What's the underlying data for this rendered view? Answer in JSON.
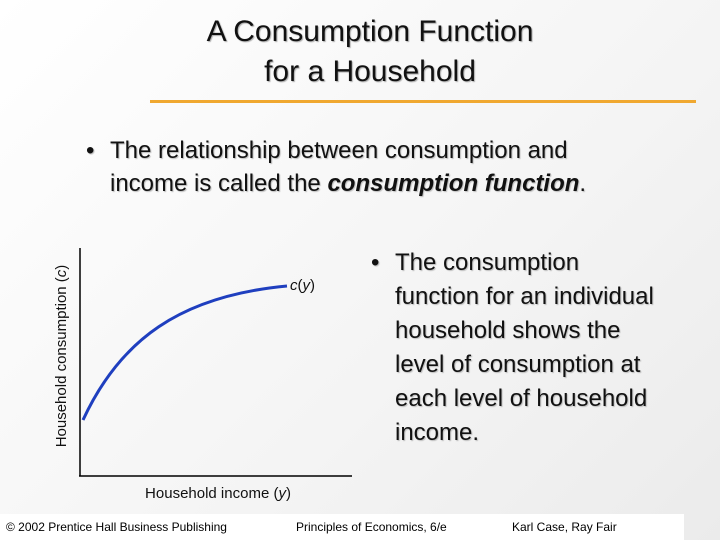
{
  "title": {
    "line1": "A Consumption Function",
    "line2": "for a Household"
  },
  "bullet1": {
    "text": "The relationship between consumption and income is called the ",
    "emphasis": "consumption function",
    "end": "."
  },
  "bullet2": "The consumption function for an individual household shows the level of consumption at each level of household income.",
  "graph": {
    "y_label": {
      "text": "Household consumption (",
      "var": "c",
      "close": ")"
    },
    "x_label": {
      "text": "Household income (",
      "var": "y",
      "close": ")"
    },
    "curve_label": {
      "func": "c",
      "open": "(",
      "var": "y",
      "close": ")"
    }
  },
  "footer": {
    "left": "© 2002 Prentice Hall Business Publishing",
    "middle": "Principles of Economics, 6/e",
    "right": "Karl Case, Ray Fair"
  }
}
